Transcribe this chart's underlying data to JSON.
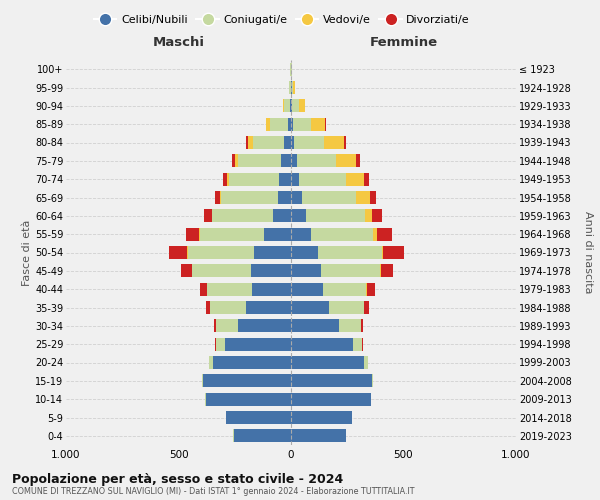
{
  "age_groups": [
    "0-4",
    "5-9",
    "10-14",
    "15-19",
    "20-24",
    "25-29",
    "30-34",
    "35-39",
    "40-44",
    "45-49",
    "50-54",
    "55-59",
    "60-64",
    "65-69",
    "70-74",
    "75-79",
    "80-84",
    "85-89",
    "90-94",
    "95-99",
    "100+"
  ],
  "birth_years": [
    "2019-2023",
    "2014-2018",
    "2009-2013",
    "2004-2008",
    "1999-2003",
    "1994-1998",
    "1989-1993",
    "1984-1988",
    "1979-1983",
    "1974-1978",
    "1969-1973",
    "1964-1968",
    "1959-1963",
    "1954-1958",
    "1949-1953",
    "1944-1948",
    "1939-1943",
    "1934-1938",
    "1929-1933",
    "1924-1928",
    "≤ 1923"
  ],
  "maschi": {
    "celibi": [
      255,
      290,
      380,
      390,
      345,
      295,
      235,
      200,
      175,
      180,
      165,
      120,
      80,
      60,
      55,
      45,
      30,
      15,
      5,
      2,
      2
    ],
    "coniugati": [
      1,
      1,
      2,
      5,
      20,
      40,
      100,
      160,
      200,
      260,
      295,
      285,
      270,
      250,
      220,
      190,
      140,
      80,
      25,
      5,
      2
    ],
    "vedovi": [
      0,
      0,
      0,
      0,
      0,
      0,
      0,
      0,
      0,
      1,
      1,
      2,
      3,
      5,
      10,
      15,
      20,
      15,
      5,
      1,
      0
    ],
    "divorziati": [
      0,
      0,
      0,
      0,
      1,
      3,
      8,
      18,
      30,
      50,
      80,
      60,
      35,
      22,
      18,
      12,
      8,
      3,
      1,
      0,
      0
    ]
  },
  "femmine": {
    "nubili": [
      245,
      270,
      355,
      360,
      325,
      275,
      215,
      170,
      140,
      135,
      120,
      90,
      65,
      50,
      35,
      25,
      15,
      10,
      5,
      3,
      2
    ],
    "coniugate": [
      1,
      1,
      2,
      5,
      18,
      40,
      95,
      155,
      195,
      260,
      285,
      275,
      265,
      240,
      210,
      175,
      130,
      80,
      30,
      8,
      2
    ],
    "vedove": [
      0,
      0,
      0,
      0,
      0,
      0,
      0,
      1,
      2,
      3,
      5,
      15,
      30,
      60,
      80,
      90,
      90,
      60,
      25,
      5,
      1
    ],
    "divorziate": [
      0,
      0,
      0,
      0,
      1,
      4,
      10,
      20,
      35,
      55,
      90,
      70,
      45,
      28,
      22,
      18,
      10,
      5,
      2,
      0,
      0
    ]
  },
  "colors": {
    "celibi_nubili": "#4472a8",
    "coniugati": "#c5d9a0",
    "vedovi": "#f5c842",
    "divorziati": "#cc2222"
  },
  "legend_labels": [
    "Celibi/Nubili",
    "Coniugati/e",
    "Vedovi/e",
    "Divorziati/e"
  ],
  "title": "Popolazione per età, sesso e stato civile - 2024",
  "subtitle": "COMUNE DI TREZZANO SUL NAVIGLIO (MI) - Dati ISTAT 1° gennaio 2024 - Elaborazione TUTTITALIA.IT",
  "ylabel_left": "Fasce di età",
  "ylabel_right": "Anni di nascita",
  "xlabel_left": "Maschi",
  "xlabel_right": "Femmine",
  "xlim": 1000,
  "bg_color": "#f0f0f0",
  "grid_color": "#d0d0d0"
}
